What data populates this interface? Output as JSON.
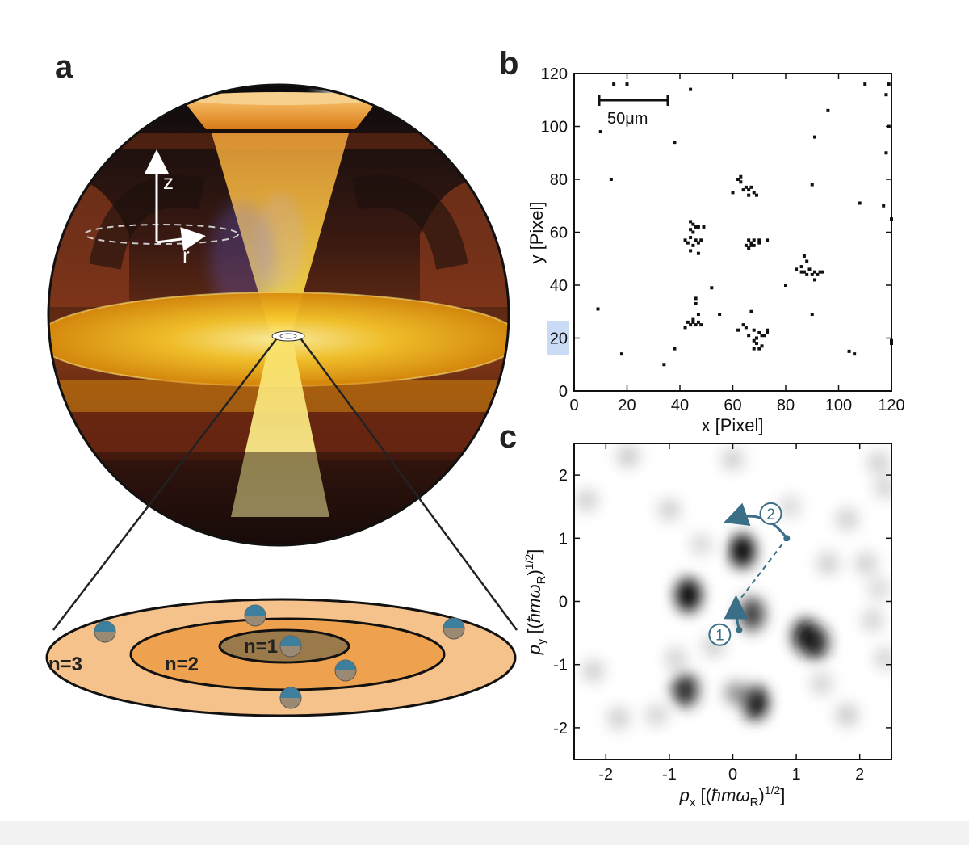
{
  "panel_a": {
    "label": "a",
    "axis_z": "z",
    "axis_r": "r",
    "shells": [
      {
        "label": "n=3",
        "color": "#f4c28a"
      },
      {
        "label": "n=2",
        "color": "#eea24f"
      },
      {
        "label": "n=1",
        "color": "#9a7a4a"
      }
    ],
    "atom_color": "#3e7f9e"
  },
  "panel_b": {
    "label": "b",
    "scalebar_label": "50μm",
    "chart_data": {
      "type": "scatter",
      "xlabel": "x [Pixel]",
      "ylabel": "y [Pixel]",
      "xlim": [
        0,
        120
      ],
      "ylim": [
        0,
        120
      ],
      "xticks": [
        "0",
        "20",
        "40",
        "60",
        "80",
        "100",
        "120"
      ],
      "yticks": [
        "0",
        "20",
        "40",
        "60",
        "80",
        "100",
        "120"
      ],
      "grid": false,
      "points": [
        [
          15,
          116
        ],
        [
          20,
          116
        ],
        [
          44,
          114
        ],
        [
          119,
          116
        ],
        [
          110,
          116
        ],
        [
          118,
          112
        ],
        [
          10,
          98
        ],
        [
          38,
          94
        ],
        [
          96,
          106
        ],
        [
          91,
          96
        ],
        [
          119,
          100
        ],
        [
          118,
          90
        ],
        [
          14,
          80
        ],
        [
          90,
          78
        ],
        [
          62,
          80
        ],
        [
          63,
          81
        ],
        [
          63,
          79
        ],
        [
          65,
          77
        ],
        [
          66,
          76
        ],
        [
          67,
          77
        ],
        [
          66,
          74
        ],
        [
          68,
          75
        ],
        [
          64,
          76
        ],
        [
          60,
          75
        ],
        [
          69,
          74
        ],
        [
          108,
          71
        ],
        [
          117,
          70
        ],
        [
          120,
          65
        ],
        [
          44,
          64
        ],
        [
          45,
          63
        ],
        [
          46,
          62
        ],
        [
          44,
          61
        ],
        [
          47,
          62
        ],
        [
          49,
          62
        ],
        [
          45,
          60
        ],
        [
          44,
          58
        ],
        [
          46,
          57
        ],
        [
          47,
          56
        ],
        [
          48,
          57
        ],
        [
          43,
          56
        ],
        [
          42,
          57
        ],
        [
          45,
          55
        ],
        [
          47,
          52
        ],
        [
          44,
          53
        ],
        [
          66,
          57
        ],
        [
          67,
          56
        ],
        [
          68,
          57
        ],
        [
          66,
          54
        ],
        [
          68,
          55
        ],
        [
          70,
          56
        ],
        [
          67,
          55
        ],
        [
          65,
          55
        ],
        [
          70,
          57
        ],
        [
          73,
          57
        ],
        [
          87,
          51
        ],
        [
          88,
          49
        ],
        [
          86,
          47
        ],
        [
          89,
          46
        ],
        [
          91,
          45
        ],
        [
          92,
          44
        ],
        [
          93,
          45
        ],
        [
          90,
          44
        ],
        [
          94,
          45
        ],
        [
          91,
          42
        ],
        [
          86,
          45
        ],
        [
          88,
          44
        ],
        [
          84,
          46
        ],
        [
          87,
          45
        ],
        [
          80,
          40
        ],
        [
          52,
          39
        ],
        [
          46,
          35
        ],
        [
          46,
          33
        ],
        [
          47,
          29
        ],
        [
          45,
          27
        ],
        [
          43,
          26
        ],
        [
          44,
          25
        ],
        [
          46,
          25
        ],
        [
          48,
          25
        ],
        [
          42,
          24
        ],
        [
          45,
          26
        ],
        [
          47,
          26
        ],
        [
          55,
          29
        ],
        [
          67,
          30
        ],
        [
          64,
          25
        ],
        [
          65,
          24
        ],
        [
          68,
          23
        ],
        [
          70,
          22
        ],
        [
          71,
          21
        ],
        [
          73,
          22
        ],
        [
          69,
          20
        ],
        [
          68,
          19
        ],
        [
          69,
          18
        ],
        [
          70,
          16
        ],
        [
          71,
          17
        ],
        [
          72,
          21
        ],
        [
          68,
          16
        ],
        [
          66,
          21
        ],
        [
          62,
          23
        ],
        [
          73,
          23
        ],
        [
          9,
          31
        ],
        [
          18,
          14
        ],
        [
          38,
          16
        ],
        [
          34,
          10
        ],
        [
          90,
          29
        ],
        [
          104,
          15
        ],
        [
          106,
          14
        ],
        [
          120,
          18
        ],
        [
          120,
          19
        ]
      ]
    }
  },
  "panel_c": {
    "label": "c",
    "annotation_1": "1",
    "annotation_2": "2",
    "arrow_color": "#3a6f87",
    "chart_data": {
      "type": "heatmap",
      "xlabel": "p_x [(ħmω_R)^1/2]",
      "ylabel": "p_y [(ħmω_R)^1/2]",
      "xlim": [
        -2.5,
        2.5
      ],
      "ylim": [
        -2.5,
        2.5
      ],
      "xticks": [
        "-2",
        "-1",
        "0",
        "1",
        "2"
      ],
      "yticks": [
        "-2",
        "-1",
        "0",
        "1",
        "2"
      ],
      "blobs": [
        {
          "x": 0.15,
          "y": 0.8,
          "w": 1.0
        },
        {
          "x": -0.7,
          "y": 0.1,
          "w": 1.0
        },
        {
          "x": 0.3,
          "y": -0.2,
          "w": 0.75
        },
        {
          "x": 1.15,
          "y": -0.55,
          "w": 1.0
        },
        {
          "x": 1.3,
          "y": -0.65,
          "w": 0.9
        },
        {
          "x": -0.75,
          "y": -1.4,
          "w": 0.85
        },
        {
          "x": 0.35,
          "y": -1.6,
          "w": 1.0
        },
        {
          "x": 0.05,
          "y": -1.45,
          "w": 0.4
        },
        {
          "x": -1.65,
          "y": 2.3,
          "w": 0.15
        },
        {
          "x": -2.3,
          "y": 1.6,
          "w": 0.12
        },
        {
          "x": -1.0,
          "y": 1.45,
          "w": 0.12
        },
        {
          "x": 0.0,
          "y": 2.25,
          "w": 0.12
        },
        {
          "x": 1.8,
          "y": 1.3,
          "w": 0.12
        },
        {
          "x": 1.5,
          "y": 0.6,
          "w": 0.12
        },
        {
          "x": 2.1,
          "y": 0.6,
          "w": 0.12
        },
        {
          "x": 2.3,
          "y": 2.2,
          "w": 0.12
        },
        {
          "x": 2.4,
          "y": 1.8,
          "w": 0.1
        },
        {
          "x": -2.2,
          "y": -1.1,
          "w": 0.12
        },
        {
          "x": -1.8,
          "y": -1.85,
          "w": 0.12
        },
        {
          "x": 1.8,
          "y": -1.8,
          "w": 0.15
        },
        {
          "x": 2.2,
          "y": -0.3,
          "w": 0.1
        },
        {
          "x": 2.4,
          "y": -0.9,
          "w": 0.1
        },
        {
          "x": -1.2,
          "y": -1.8,
          "w": 0.1
        },
        {
          "x": -0.9,
          "y": -0.9,
          "w": 0.1
        },
        {
          "x": -0.3,
          "y": -0.7,
          "w": 0.12
        },
        {
          "x": -0.5,
          "y": 0.9,
          "w": 0.08
        },
        {
          "x": 0.9,
          "y": 1.5,
          "w": 0.08
        },
        {
          "x": 1.4,
          "y": -1.3,
          "w": 0.1
        },
        {
          "x": 2.3,
          "y": 0.2,
          "w": 0.08
        }
      ],
      "arrow_path": [
        {
          "x": 0.1,
          "y": -0.45
        },
        {
          "x": 0.05,
          "y": -0.05
        },
        {
          "x": 0.85,
          "y": 1.0
        },
        {
          "x": 0.0,
          "y": 1.3
        }
      ]
    }
  }
}
